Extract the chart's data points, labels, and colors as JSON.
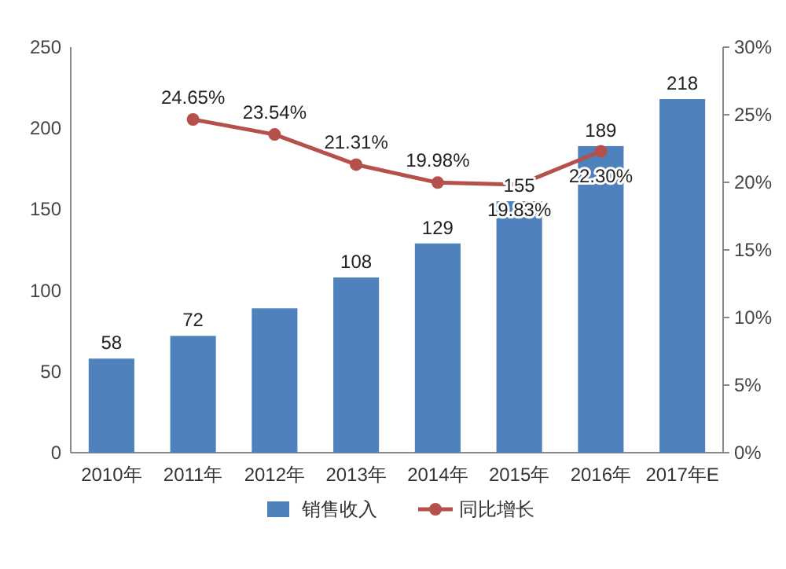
{
  "chart_data": {
    "type": "bar",
    "categories": [
      "2010年",
      "2011年",
      "2012年",
      "2013年",
      "2014年",
      "2015年",
      "2016年",
      "2017年E"
    ],
    "series": [
      {
        "name": "销售收入",
        "color": "#4f81bd",
        "values": [
          58,
          72,
          89,
          108,
          129,
          155,
          189,
          218
        ],
        "value_labels": [
          "58",
          "72",
          null,
          "108",
          "129",
          "155",
          "189",
          "218"
        ]
      },
      {
        "name": "同比增长",
        "type": "line",
        "axis": "y2",
        "color": "#b5504a",
        "values": [
          null,
          24.65,
          23.54,
          21.31,
          19.98,
          19.83,
          22.3,
          null
        ],
        "value_labels": [
          null,
          "24.65%",
          "23.54%",
          "21.31%",
          "19.98%",
          "19.83%",
          "22.30%",
          null
        ]
      }
    ],
    "ylim": [
      0,
      250
    ],
    "yticks": [
      0,
      50,
      100,
      150,
      200,
      250
    ],
    "y2lim": [
      0,
      30
    ],
    "y2ticks": [
      {
        "value": 0,
        "label": "0%"
      },
      {
        "value": 5,
        "label": "5%"
      },
      {
        "value": 10,
        "label": "10%"
      },
      {
        "value": 15,
        "label": "15%"
      },
      {
        "value": 20,
        "label": "20%"
      },
      {
        "value": 25,
        "label": "25%"
      },
      {
        "value": 30,
        "label": "30%"
      }
    ],
    "marker": "circle",
    "legend": "bottom",
    "grid": false
  }
}
